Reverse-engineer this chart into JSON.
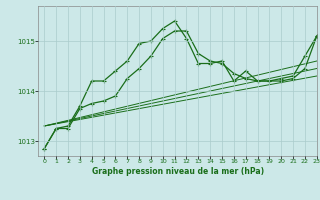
{
  "title": "Graphe pression niveau de la mer (hPa)",
  "background_color": "#cce8e8",
  "plot_bg_color": "#cce8e8",
  "grid_color": "#aacccc",
  "line_color": "#1a6e1a",
  "xlim": [
    -0.5,
    23
  ],
  "ylim": [
    1012.7,
    1015.7
  ],
  "yticks": [
    1013,
    1014,
    1015
  ],
  "xticks": [
    0,
    1,
    2,
    3,
    4,
    5,
    6,
    7,
    8,
    9,
    10,
    11,
    12,
    13,
    14,
    15,
    16,
    17,
    18,
    19,
    20,
    21,
    22,
    23
  ],
  "series": [
    {
      "x": [
        0,
        1,
        2,
        3,
        4,
        5,
        6,
        7,
        8,
        9,
        10,
        11,
        12,
        13,
        14,
        15,
        16,
        17,
        18,
        19,
        20,
        21,
        22,
        23
      ],
      "y": [
        1012.85,
        1013.25,
        1013.3,
        1013.7,
        1014.2,
        1014.2,
        1014.4,
        1014.6,
        1014.95,
        1015.0,
        1015.25,
        1015.4,
        1015.05,
        1014.55,
        1014.55,
        1014.6,
        1014.2,
        1014.4,
        1014.2,
        1014.2,
        1014.25,
        1014.3,
        1014.7,
        1015.1
      ],
      "marker": true
    },
    {
      "x": [
        0,
        1,
        2,
        3,
        4,
        5,
        6,
        7,
        8,
        9,
        10,
        11,
        12,
        13,
        14,
        15,
        16,
        17,
        18,
        19,
        20,
        21,
        22,
        23
      ],
      "y": [
        1012.85,
        1013.25,
        1013.25,
        1013.65,
        1013.75,
        1013.8,
        1013.9,
        1014.25,
        1014.45,
        1014.7,
        1015.05,
        1015.2,
        1015.2,
        1014.75,
        1014.6,
        1014.55,
        1014.35,
        1014.25,
        1014.2,
        1014.2,
        1014.2,
        1014.25,
        1014.45,
        1015.1
      ],
      "marker": true
    },
    {
      "x": [
        0,
        23
      ],
      "y": [
        1013.3,
        1014.3
      ],
      "marker": false
    },
    {
      "x": [
        0,
        23
      ],
      "y": [
        1013.3,
        1014.45
      ],
      "marker": false
    },
    {
      "x": [
        0,
        23
      ],
      "y": [
        1013.3,
        1014.6
      ],
      "marker": false
    }
  ]
}
